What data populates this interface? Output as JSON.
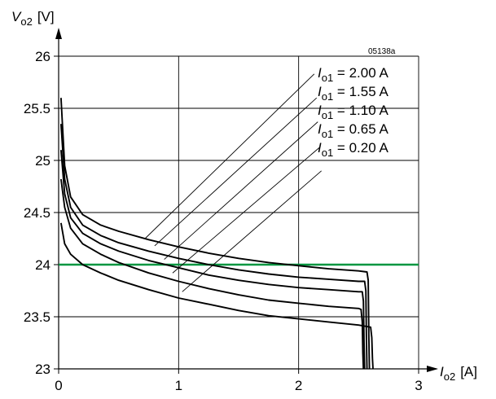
{
  "chart_data": {
    "type": "line",
    "figure_code": "05138a",
    "xlabel": {
      "symbol": "I",
      "subscript": "o2",
      "unit": "[A]"
    },
    "ylabel": {
      "symbol": "V",
      "subscript": "o2",
      "unit": "[V]"
    },
    "xlim": [
      0,
      3
    ],
    "ylim": [
      23,
      26
    ],
    "x_ticks": [
      "0",
      "1",
      "2",
      "3"
    ],
    "y_ticks": [
      "23",
      "23.5",
      "24",
      "24.5",
      "25",
      "25.5",
      "26"
    ],
    "grid": true,
    "reference_line": {
      "y": 24.0,
      "color": "#009640"
    },
    "series": [
      {
        "name": "I_o1 = 2.00 A",
        "label_symbol": "I",
        "label_sub": "o1",
        "label_value": " = 2.00 A",
        "x": [
          0.02,
          0.05,
          0.1,
          0.2,
          0.35,
          0.5,
          0.75,
          1.0,
          1.25,
          1.5,
          1.75,
          2.0,
          2.25,
          2.5,
          2.57,
          2.58,
          2.585,
          2.59
        ],
        "y": [
          25.6,
          24.95,
          24.65,
          24.48,
          24.38,
          24.32,
          24.24,
          24.17,
          24.11,
          24.06,
          24.02,
          23.99,
          23.96,
          23.94,
          23.93,
          23.85,
          23.3,
          23.0
        ]
      },
      {
        "name": "I_o1 = 1.55 A",
        "label_symbol": "I",
        "label_sub": "o1",
        "label_value": " = 1.55 A",
        "x": [
          0.02,
          0.05,
          0.1,
          0.2,
          0.35,
          0.5,
          0.75,
          1.0,
          1.25,
          1.5,
          1.75,
          2.0,
          2.25,
          2.5,
          2.55,
          2.56,
          2.565,
          2.57
        ],
        "y": [
          25.35,
          24.82,
          24.55,
          24.38,
          24.28,
          24.21,
          24.13,
          24.06,
          24.0,
          23.95,
          23.91,
          23.88,
          23.86,
          23.84,
          23.84,
          23.75,
          23.3,
          23.0
        ]
      },
      {
        "name": "I_o1 = 1.10 A",
        "label_symbol": "I",
        "label_sub": "o1",
        "label_value": " = 1.10 A",
        "x": [
          0.02,
          0.05,
          0.1,
          0.2,
          0.35,
          0.5,
          0.75,
          1.0,
          1.25,
          1.5,
          1.75,
          2.0,
          2.25,
          2.5,
          2.53,
          2.54,
          2.545,
          2.55
        ],
        "y": [
          25.1,
          24.68,
          24.45,
          24.3,
          24.2,
          24.13,
          24.04,
          23.97,
          23.9,
          23.85,
          23.81,
          23.78,
          23.76,
          23.74,
          23.74,
          23.65,
          23.25,
          23.0
        ]
      },
      {
        "name": "I_o1 = 0.65 A",
        "label_symbol": "I",
        "label_sub": "o1",
        "label_value": " = 0.65 A",
        "x": [
          0.02,
          0.05,
          0.1,
          0.2,
          0.35,
          0.5,
          0.75,
          1.0,
          1.25,
          1.5,
          1.75,
          2.0,
          2.25,
          2.5,
          2.52,
          2.53,
          2.535,
          2.54
        ],
        "y": [
          24.82,
          24.55,
          24.35,
          24.2,
          24.1,
          24.02,
          23.92,
          23.84,
          23.77,
          23.71,
          23.66,
          23.63,
          23.6,
          23.58,
          23.57,
          23.45,
          23.15,
          23.0
        ]
      },
      {
        "name": "I_o1 = 0.20 A",
        "label_symbol": "I",
        "label_sub": "o1",
        "label_value": " = 0.20 A",
        "x": [
          0.02,
          0.05,
          0.1,
          0.2,
          0.35,
          0.5,
          0.75,
          1.0,
          1.25,
          1.5,
          1.75,
          2.0,
          2.25,
          2.5,
          2.6,
          2.61,
          2.615,
          2.62
        ],
        "y": [
          24.4,
          24.2,
          24.1,
          24.0,
          23.92,
          23.85,
          23.76,
          23.68,
          23.62,
          23.56,
          23.51,
          23.48,
          23.45,
          23.42,
          23.4,
          23.3,
          23.1,
          23.0
        ]
      }
    ],
    "leader_lines": [
      {
        "from": [
          0.72,
          24.25
        ],
        "to": [
          2.13,
          25.83
        ]
      },
      {
        "from": [
          0.8,
          24.18
        ],
        "to": [
          2.15,
          25.6
        ]
      },
      {
        "from": [
          0.88,
          24.05
        ],
        "to": [
          2.16,
          25.37
        ]
      },
      {
        "from": [
          0.95,
          23.92
        ],
        "to": [
          2.18,
          25.13
        ]
      },
      {
        "from": [
          1.03,
          23.74
        ],
        "to": [
          2.19,
          24.9
        ]
      }
    ],
    "colors": {
      "curves": "#000000",
      "grid": "#000000",
      "reference": "#009640"
    }
  }
}
